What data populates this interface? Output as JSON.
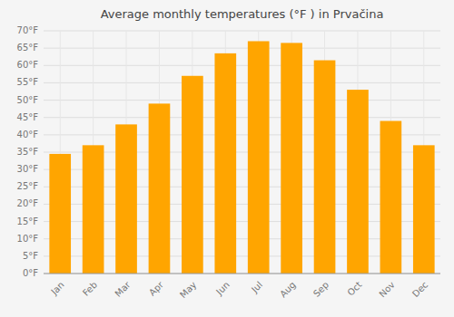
{
  "chart_data": {
    "type": "bar",
    "title": "Average monthly temperatures (°F ) in Prvačina",
    "categories": [
      "Jan",
      "Feb",
      "Mar",
      "Apr",
      "May",
      "Jun",
      "Jul",
      "Aug",
      "Sep",
      "Oct",
      "Nov",
      "Dec"
    ],
    "values": [
      34.5,
      37.0,
      43.0,
      49.0,
      57.0,
      63.5,
      67.0,
      66.5,
      61.5,
      53.0,
      44.0,
      37.0
    ],
    "color": "#FFA500",
    "ylim": [
      0,
      70
    ],
    "yticks": [
      {
        "value": 0,
        "label": "0°F"
      },
      {
        "value": 5,
        "label": "5°F"
      },
      {
        "value": 10,
        "label": "10°F"
      },
      {
        "value": 15,
        "label": "15°F"
      },
      {
        "value": 20,
        "label": "20°F"
      },
      {
        "value": 25,
        "label": "25°F"
      },
      {
        "value": 30,
        "label": "30°F"
      },
      {
        "value": 35,
        "label": "35°F"
      },
      {
        "value": 40,
        "label": "40°F"
      },
      {
        "value": 45,
        "label": "45°F"
      },
      {
        "value": 50,
        "label": "50°F"
      },
      {
        "value": 55,
        "label": "55°F"
      },
      {
        "value": 60,
        "label": "60°F"
      },
      {
        "value": 65,
        "label": "65°F"
      },
      {
        "value": 70,
        "label": "70°F"
      }
    ],
    "grid": true
  }
}
